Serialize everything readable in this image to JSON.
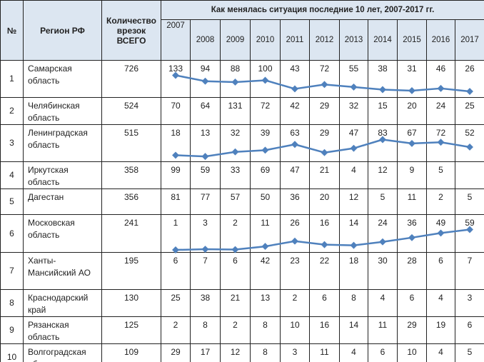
{
  "header": {
    "num": "№",
    "region": "Регион РФ",
    "total": "Количество врезок ВСЕГО",
    "period_title": "Как менялась ситуация последние 10 лет, 2007-2017 гг.",
    "years": [
      "2007",
      "2008",
      "2009",
      "2010",
      "2011",
      "2012",
      "2013",
      "2014",
      "2015",
      "2016",
      "2017"
    ]
  },
  "sparkline_color": "#4f81bd",
  "rows": [
    {
      "num": "1",
      "region": "Самарская область",
      "total": "726",
      "values": [
        "133",
        "94",
        "88",
        "100",
        "43",
        "72",
        "55",
        "38",
        "31",
        "46",
        "26"
      ],
      "sparkline": true
    },
    {
      "num": "2",
      "region": "Челябинская область",
      "total": "524",
      "values": [
        "70",
        "64",
        "131",
        "72",
        "42",
        "29",
        "32",
        "15",
        "20",
        "24",
        "25"
      ],
      "sparkline": false
    },
    {
      "num": "3",
      "region": "Ленинградская область",
      "total": "515",
      "values": [
        "18",
        "13",
        "32",
        "39",
        "63",
        "29",
        "47",
        "83",
        "67",
        "72",
        "52"
      ],
      "sparkline": true
    },
    {
      "num": "4",
      "region": "Иркутская область",
      "total": "358",
      "values": [
        "99",
        "59",
        "33",
        "69",
        "47",
        "21",
        "4",
        "12",
        "9",
        "5",
        ""
      ],
      "sparkline": false
    },
    {
      "num": "5",
      "region": "Дагестан",
      "total": "356",
      "values": [
        "81",
        "77",
        "57",
        "50",
        "36",
        "20",
        "12",
        "5",
        "11",
        "2",
        "5"
      ],
      "sparkline": false
    },
    {
      "num": "6",
      "region": "Московская область",
      "total": "241",
      "values": [
        "1",
        "3",
        "2",
        "11",
        "26",
        "16",
        "14",
        "24",
        "36",
        "49",
        "59"
      ],
      "sparkline": true
    },
    {
      "num": "7",
      "region": "Ханты-Мансийский АО",
      "total": "195",
      "values": [
        "6",
        "7",
        "6",
        "42",
        "23",
        "22",
        "18",
        "30",
        "28",
        "6",
        "7"
      ],
      "sparkline": false
    },
    {
      "num": "8",
      "region": "Краснодарский край",
      "total": "130",
      "values": [
        "25",
        "38",
        "21",
        "13",
        "2",
        "6",
        "8",
        "4",
        "6",
        "4",
        "3"
      ],
      "sparkline": false
    },
    {
      "num": "9",
      "region": "Рязанская область",
      "total": "125",
      "values": [
        "2",
        "8",
        "2",
        "8",
        "10",
        "16",
        "14",
        "11",
        "29",
        "19",
        "6"
      ],
      "sparkline": false
    },
    {
      "num": "10",
      "region": "Волгоградская область",
      "total": "109",
      "values": [
        "29",
        "17",
        "12",
        "8",
        "3",
        "11",
        "4",
        "6",
        "10",
        "4",
        "5"
      ],
      "sparkline": false
    }
  ]
}
